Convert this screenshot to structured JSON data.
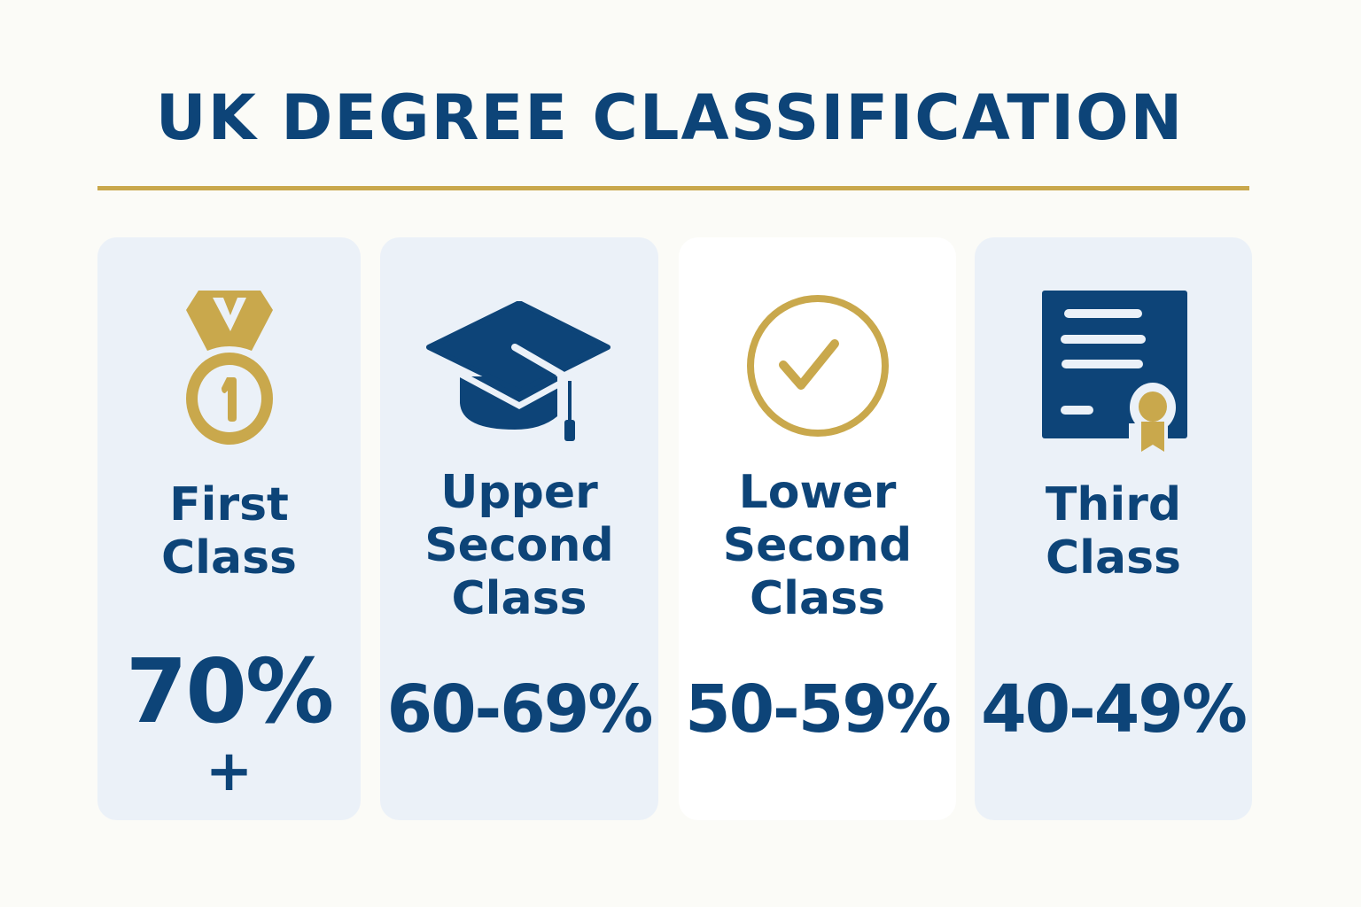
{
  "title": "UK DEGREE CLASSIFICATION",
  "colors": {
    "navy": "#0d4478",
    "gold": "#c9a84c",
    "card": "#ebf1f8",
    "background": "#fbfbf7"
  },
  "classes": [
    {
      "icon": "medal-icon",
      "label_lines": [
        "First",
        "Class"
      ],
      "range": "70%",
      "suffix": "+"
    },
    {
      "icon": "graduation-cap-icon",
      "label_lines": [
        "Upper",
        "Second",
        "Class"
      ],
      "range": "60-69%"
    },
    {
      "icon": "check-circle-icon",
      "label_lines": [
        "Lower",
        "Second",
        "Class"
      ],
      "range": "50-59%"
    },
    {
      "icon": "certificate-icon",
      "label_lines": [
        "Third",
        "Class"
      ],
      "range": "40-49%"
    }
  ]
}
